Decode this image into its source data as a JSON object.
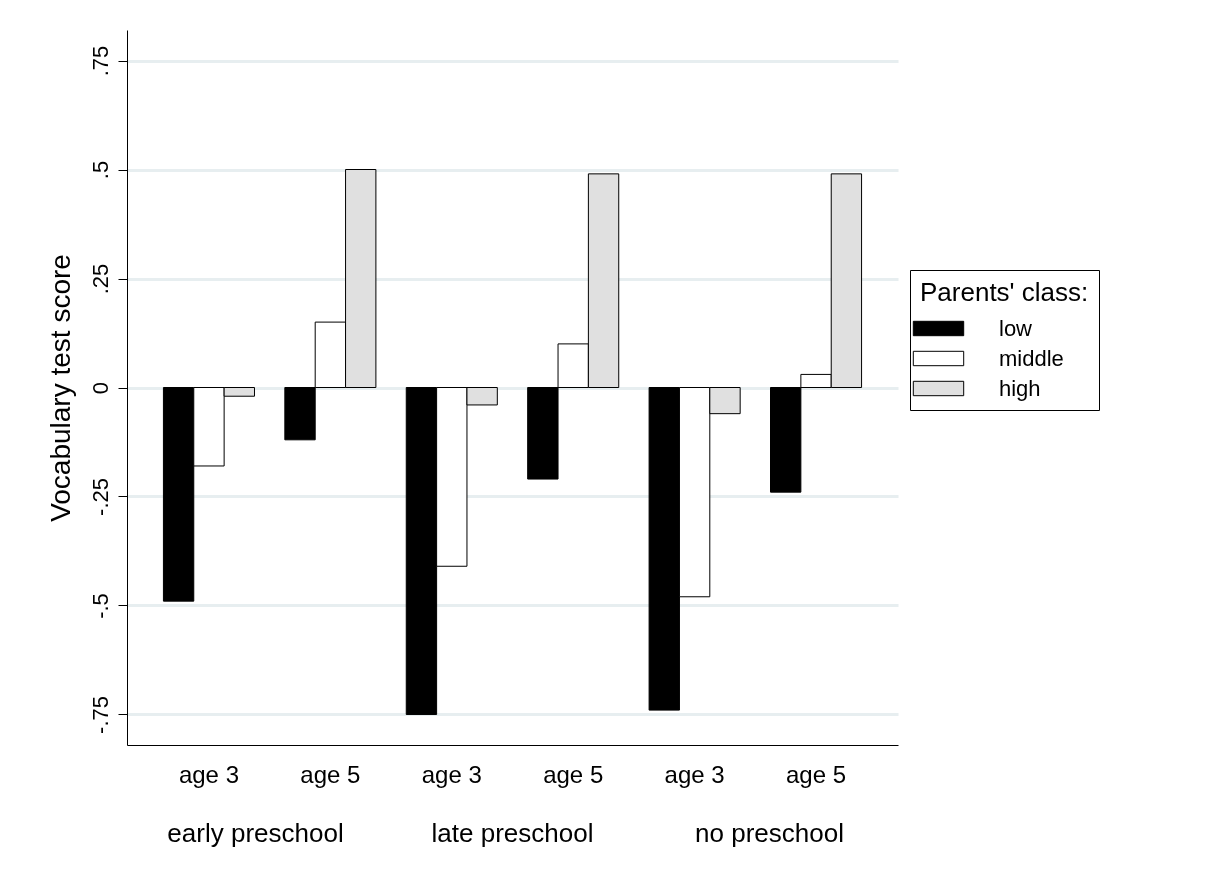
{
  "chart_data": {
    "type": "bar",
    "ylabel": "Vocabulary test score",
    "legend_title": "Parents' class:",
    "legend": "right",
    "grid": "y",
    "categories": [
      "age 3",
      "age 5",
      "age 3",
      "age 5",
      "age 3",
      "age 5"
    ],
    "annotations": [
      "early preschool",
      "late preschool",
      "no preschool"
    ],
    "ylim": [
      -0.82,
      0.82
    ],
    "yticks": [
      {
        "value": -0.75,
        "label": "-.75"
      },
      {
        "value": -0.5,
        "label": "-.5"
      },
      {
        "value": -0.25,
        "label": "-.25"
      },
      0,
      {
        "value": 0.25,
        "label": ".25"
      },
      {
        "value": 0.5,
        "label": ".5"
      },
      {
        "value": 0.75,
        "label": ".75"
      }
    ],
    "series": [
      {
        "name": "low",
        "color": "#000000",
        "values": [
          -0.49,
          -0.12,
          -0.75,
          -0.21,
          -0.74,
          -0.24
        ]
      },
      {
        "name": "middle",
        "color": "#ffffff",
        "values": [
          -0.18,
          0.15,
          -0.41,
          0.1,
          -0.48,
          0.03
        ]
      },
      {
        "name": "high",
        "color": "#e0e0e0",
        "values": [
          -0.02,
          0.5,
          -0.04,
          0.49,
          -0.06,
          0.49
        ]
      }
    ]
  }
}
